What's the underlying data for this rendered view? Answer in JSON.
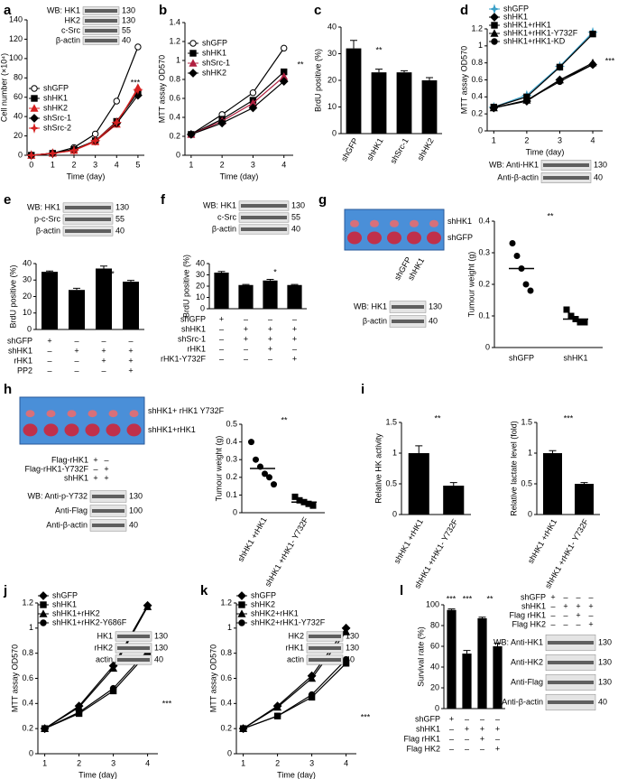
{
  "chart_data": [
    {
      "panel": "a",
      "type": "line",
      "ylabel": "Cell number (×10⁴)",
      "xlabel": "Time (day)",
      "x": [
        0,
        1,
        2,
        3,
        4,
        5
      ],
      "xlim": [
        -0.2,
        5.3
      ],
      "xticks": [
        0,
        1,
        2,
        3,
        4,
        5
      ],
      "ylim": [
        0,
        140
      ],
      "yticks": [
        0,
        20,
        40,
        60,
        80,
        100,
        120,
        140
      ],
      "series": [
        {
          "name": "shGFP",
          "color": "#000000",
          "marker": "circle-open",
          "values": [
            0,
            2,
            8,
            22,
            56,
            112
          ]
        },
        {
          "name": "shHK1",
          "color": "#000000",
          "marker": "square",
          "values": [
            0,
            2,
            6,
            15,
            35,
            65
          ]
        },
        {
          "name": "shHK2",
          "color": "#d62020",
          "marker": "triangle",
          "values": [
            0,
            2,
            5,
            14,
            32,
            70
          ]
        },
        {
          "name": "shSrc-1",
          "color": "#000000",
          "marker": "diamond",
          "values": [
            0,
            2,
            6,
            15,
            33,
            62
          ]
        },
        {
          "name": "shSrc-2",
          "color": "#d62020",
          "marker": "star",
          "values": [
            0,
            2,
            5,
            15,
            34,
            68
          ]
        }
      ],
      "blot": [
        {
          "label": "WB: HK1",
          "marker": 130
        },
        {
          "label": "HK2",
          "marker": 130
        },
        {
          "label": "c-Src",
          "marker": 55
        },
        {
          "label": "β-actin",
          "marker": 40
        }
      ],
      "annotations": [
        "***"
      ]
    },
    {
      "panel": "b",
      "type": "line",
      "ylabel": "MTT assay OD570",
      "xlabel": "Time (day)",
      "x": [
        1,
        2,
        3,
        4
      ],
      "xlim": [
        0.8,
        4.3
      ],
      "xticks": [
        1,
        2,
        3,
        4
      ],
      "ylim": [
        0,
        1.4
      ],
      "yticks": [
        0,
        0.2,
        0.4,
        0.6,
        0.8,
        1,
        1.2,
        1.4
      ],
      "series": [
        {
          "name": "shGFP",
          "color": "#000000",
          "marker": "circle-open",
          "values": [
            0.22,
            0.43,
            0.66,
            1.13
          ]
        },
        {
          "name": "shHK1",
          "color": "#000000",
          "marker": "square",
          "values": [
            0.22,
            0.38,
            0.58,
            0.88
          ]
        },
        {
          "name": "shSrc-1",
          "color": "#b02040",
          "marker": "triangle",
          "values": [
            0.22,
            0.36,
            0.55,
            0.83
          ]
        },
        {
          "name": "shHK2",
          "color": "#000000",
          "marker": "diamond",
          "values": [
            0.22,
            0.34,
            0.5,
            0.78
          ]
        }
      ],
      "annotations": [
        "**"
      ]
    },
    {
      "panel": "c",
      "type": "bar",
      "ylabel": "BrdU positive (%)",
      "color": "#000000",
      "categories": [
        "shGFP",
        "shHK1",
        "shSrc-1",
        "shHK2"
      ],
      "values": [
        32,
        23,
        23,
        20
      ],
      "errors": [
        3,
        1.2,
        0.6,
        1
      ],
      "ylim": [
        0,
        40
      ],
      "yticks": [
        0,
        10,
        20,
        30,
        40
      ],
      "annotations": [
        "**"
      ]
    },
    {
      "panel": "d",
      "type": "line",
      "ylabel": "MTT assay OD570",
      "xlabel": "Time (day)",
      "x": [
        1,
        2,
        3,
        4
      ],
      "xlim": [
        0.8,
        4.3
      ],
      "xticks": [
        1,
        2,
        3,
        4
      ],
      "ylim": [
        0,
        1.2
      ],
      "yticks": [
        0,
        0.2,
        0.4,
        0.6,
        0.8,
        1,
        1.2
      ],
      "series": [
        {
          "name": "shGFP",
          "color": "#3aa0c8",
          "marker": "star",
          "values": [
            0.28,
            0.42,
            0.76,
            1.16
          ]
        },
        {
          "name": "shHK1",
          "color": "#000000",
          "marker": "diamond",
          "values": [
            0.27,
            0.35,
            0.6,
            0.78
          ]
        },
        {
          "name": "shHK1+rHK1",
          "color": "#000000",
          "marker": "square",
          "values": [
            0.28,
            0.4,
            0.75,
            1.14
          ]
        },
        {
          "name": "shHK1+rHK1-Y732F",
          "color": "#000000",
          "marker": "triangle",
          "values": [
            0.27,
            0.36,
            0.6,
            0.8
          ]
        },
        {
          "name": "shHK1+rHK1-KD",
          "color": "#000000",
          "marker": "circle",
          "values": [
            0.27,
            0.36,
            0.58,
            0.78
          ]
        }
      ],
      "blot": [
        {
          "label": "WB: Anti-HK1",
          "marker": 130
        },
        {
          "label": "Anti-β-actin",
          "marker": 40
        }
      ],
      "annotations": [
        "***"
      ]
    },
    {
      "panel": "e",
      "type": "bar",
      "ylabel": "BrdU positive (%)",
      "color": "#000000",
      "values": [
        35,
        24,
        37,
        29
      ],
      "errors": [
        0.5,
        1,
        1.5,
        0.8
      ],
      "ylim": [
        0,
        40
      ],
      "yticks": [
        0,
        10,
        20,
        30,
        40
      ],
      "conditions": [
        {
          "name": "shGFP",
          "marks": [
            "+",
            "–",
            "–",
            "–"
          ]
        },
        {
          "name": "shHK1",
          "marks": [
            "–",
            "+",
            "+",
            "+"
          ]
        },
        {
          "name": "rHK1",
          "marks": [
            "–",
            "–",
            "+",
            "+"
          ]
        },
        {
          "name": "PP2",
          "marks": [
            "–",
            "–",
            "–",
            "+"
          ]
        }
      ],
      "blot": [
        {
          "label": "WB: HK1",
          "marker": 130
        },
        {
          "label": "p-c-Src",
          "marker": 55
        },
        {
          "label": "β-actin",
          "marker": 40
        }
      ],
      "annotations": [
        "*"
      ]
    },
    {
      "panel": "f",
      "type": "bar",
      "ylabel": "BrdU positive (%)",
      "color": "#000000",
      "values": [
        32,
        21,
        25,
        21
      ],
      "errors": [
        1,
        0.5,
        1,
        0.5
      ],
      "ylim": [
        0,
        40
      ],
      "yticks": [
        0,
        10,
        20,
        30,
        40
      ],
      "conditions": [
        {
          "name": "shGFP",
          "marks": [
            "+",
            "–",
            "–",
            "–"
          ]
        },
        {
          "name": "shHK1",
          "marks": [
            "–",
            "+",
            "+",
            "+"
          ]
        },
        {
          "name": "shSrc-1",
          "marks": [
            "–",
            "+",
            "+",
            "+"
          ]
        },
        {
          "name": "rHK1",
          "marks": [
            "–",
            "–",
            "+",
            "–"
          ]
        },
        {
          "name": "rHK1-Y732F",
          "marks": [
            "–",
            "–",
            "–",
            "+"
          ]
        }
      ],
      "blot": [
        {
          "label": "WB: HK1",
          "marker": 130
        },
        {
          "label": "c-Src",
          "marker": 55
        },
        {
          "label": "β-actin",
          "marker": 40
        }
      ],
      "annotations": [
        "*"
      ]
    },
    {
      "panel": "g",
      "type": "dot",
      "ylabel": "Tumour weight (g)",
      "categories": [
        "shGFP",
        "shHK1"
      ],
      "points": [
        [
          0.33,
          0.29,
          0.25,
          0.2,
          0.18
        ],
        [
          0.12,
          0.1,
          0.09,
          0.08,
          0.08
        ]
      ],
      "means": [
        0.25,
        0.09
      ],
      "ylim": [
        0,
        0.4
      ],
      "yticks": [
        0,
        0.1,
        0.2,
        0.3,
        0.4
      ],
      "photo_labels": [
        "shHK1",
        "shGFP"
      ],
      "blot_lanes": [
        "shGFP",
        "shHK1"
      ],
      "blot": [
        {
          "label": "WB: HK1",
          "marker": 130
        },
        {
          "label": "β-actin",
          "marker": 40
        }
      ],
      "annotations": [
        "**"
      ]
    },
    {
      "panel": "h",
      "type": "dot",
      "ylabel": "Tumour weight (g)",
      "categories": [
        "shHK1 +rHK1",
        "shHK1 +rHK1- Y732F"
      ],
      "points": [
        [
          0.4,
          0.3,
          0.26,
          0.22,
          0.2,
          0.16
        ],
        [
          0.09,
          0.07,
          0.06,
          0.05,
          0.04
        ]
      ],
      "means": [
        0.25,
        0.06
      ],
      "ylim": [
        0,
        0.5
      ],
      "yticks": [
        0,
        0.1,
        0.2,
        0.3,
        0.4,
        0.5
      ],
      "photo_labels": [
        "shHK1+ rHK1 Y732F",
        "shHK1+rHK1"
      ],
      "blot_conditions": [
        {
          "name": "Flag-rHK1",
          "marks": [
            "+",
            "–"
          ]
        },
        {
          "name": "Flag-rHK1-Y732F",
          "marks": [
            "–",
            "+"
          ]
        },
        {
          "name": "shHK1",
          "marks": [
            "+",
            "+"
          ]
        }
      ],
      "blot": [
        {
          "label": "WB: Anti-p-Y732",
          "marker": 130
        },
        {
          "label": "Anti-Flag",
          "marker": 100
        },
        {
          "label": "Anti-β-actin",
          "marker": 40
        }
      ],
      "annotations": [
        "**"
      ]
    },
    {
      "panel": "i",
      "type": "bar",
      "ylabel": "Relative HK activity",
      "color": "#000000",
      "categories": [
        "shHK1 +rHK1",
        "shHK1 +rHK1- Y732F"
      ],
      "values": [
        1,
        0.47
      ],
      "errors": [
        0.12,
        0.05
      ],
      "ylim": [
        0,
        1.5
      ],
      "yticks": [
        0,
        0.5,
        1,
        1.5
      ],
      "annotations": [
        "**"
      ]
    },
    {
      "type": "bar",
      "ylabel": "Relative lactate level (fold)",
      "color": "#000000",
      "categories": [
        "shHK1 +rHK1",
        "shHK1 +rHK1- Y732F"
      ],
      "values": [
        1,
        0.5
      ],
      "errors": [
        0.04,
        0.02
      ],
      "ylim": [
        0,
        1.5
      ],
      "yticks": [
        0,
        0.5,
        1,
        1.5
      ],
      "annotations": [
        "***"
      ]
    },
    {
      "panel": "j",
      "type": "line",
      "ylabel": "MTT assay OD570",
      "xlabel": "Time (day)",
      "x": [
        1,
        2,
        3,
        4
      ],
      "xlim": [
        0.8,
        4.3
      ],
      "xticks": [
        1,
        2,
        3,
        4
      ],
      "ylim": [
        0,
        1.2
      ],
      "yticks": [
        0,
        0.2,
        0.4,
        0.6,
        0.8,
        1,
        1.2
      ],
      "series": [
        {
          "name": "shGFP",
          "color": "#000000",
          "marker": "diamond",
          "values": [
            0.2,
            0.38,
            0.7,
            1.18
          ]
        },
        {
          "name": "shHK1",
          "color": "#000000",
          "marker": "square",
          "values": [
            0.2,
            0.32,
            0.5,
            0.8
          ]
        },
        {
          "name": "shHK1+rHK2",
          "color": "#000000",
          "marker": "triangle",
          "values": [
            0.2,
            0.37,
            0.68,
            1.17
          ]
        },
        {
          "name": "shHK1+rHK2-Y686F",
          "color": "#000000",
          "marker": "circle",
          "values": [
            0.2,
            0.33,
            0.52,
            0.82
          ]
        }
      ],
      "blot": [
        {
          "label": "HK1",
          "marker": 130
        },
        {
          "label": "rHK2",
          "marker": 130
        },
        {
          "label": "actin",
          "marker": 40
        }
      ],
      "annotations": [
        "***"
      ]
    },
    {
      "panel": "k",
      "type": "line",
      "ylabel": "MTT assay OD570",
      "xlabel": "Time (day)",
      "x": [
        1,
        2,
        3,
        4
      ],
      "xlim": [
        0.8,
        4.3
      ],
      "xticks": [
        1,
        2,
        3,
        4
      ],
      "ylim": [
        0,
        1.2
      ],
      "yticks": [
        0,
        0.2,
        0.4,
        0.6,
        0.8,
        1,
        1.2
      ],
      "series": [
        {
          "name": "shGFP",
          "color": "#000000",
          "marker": "diamond",
          "values": [
            0.2,
            0.38,
            0.62,
            1.0
          ]
        },
        {
          "name": "shHK2",
          "color": "#000000",
          "marker": "square",
          "values": [
            0.2,
            0.3,
            0.45,
            0.72
          ]
        },
        {
          "name": "shHK2+rHK1",
          "color": "#000000",
          "marker": "triangle",
          "values": [
            0.2,
            0.37,
            0.6,
            0.97
          ]
        },
        {
          "name": "shHK2+rHK1-Y732F",
          "color": "#000000",
          "marker": "circle",
          "values": [
            0.2,
            0.3,
            0.47,
            0.75
          ]
        }
      ],
      "blot": [
        {
          "label": "HK2",
          "marker": 130
        },
        {
          "label": "rHK1",
          "marker": 130
        },
        {
          "label": "actin",
          "marker": 40
        }
      ],
      "annotations": [
        "***"
      ]
    },
    {
      "panel": "l",
      "type": "bar",
      "ylabel": "Survival rate (%)",
      "color": "#000000",
      "values": [
        95,
        53,
        87,
        60
      ],
      "errors": [
        1,
        3,
        1,
        3
      ],
      "ylim": [
        0,
        100
      ],
      "yticks": [
        0,
        20,
        40,
        60,
        80,
        100
      ],
      "conditions": [
        {
          "name": "shGFP",
          "marks": [
            "+",
            "–",
            "–",
            "–"
          ]
        },
        {
          "name": "shHK1",
          "marks": [
            "–",
            "+",
            "+",
            "+"
          ]
        },
        {
          "name": "Flag rHK1",
          "marks": [
            "–",
            "–",
            "+",
            "–"
          ]
        },
        {
          "name": "Flag HK2",
          "marks": [
            "–",
            "–",
            "–",
            "+"
          ]
        }
      ],
      "blot_conditions": [
        {
          "name": "shGFP",
          "marks": [
            "+",
            "–",
            "–",
            "–"
          ]
        },
        {
          "name": "shHK1",
          "marks": [
            "–",
            "+",
            "+",
            "+"
          ]
        },
        {
          "name": "Flag rHK1",
          "marks": [
            "–",
            "–",
            "+",
            "–"
          ]
        },
        {
          "name": "Flag HK2",
          "marks": [
            "–",
            "–",
            "–",
            "+"
          ]
        }
      ],
      "blot": [
        {
          "label": "WB: Anti-HK1",
          "marker": 130
        },
        {
          "label": "Anti-HK2",
          "marker": 130
        },
        {
          "label": "Anti-Flag",
          "marker": 130
        },
        {
          "label": "Anti-β-actin",
          "marker": 40
        }
      ],
      "annotations": [
        "***",
        "***",
        "**"
      ]
    }
  ]
}
